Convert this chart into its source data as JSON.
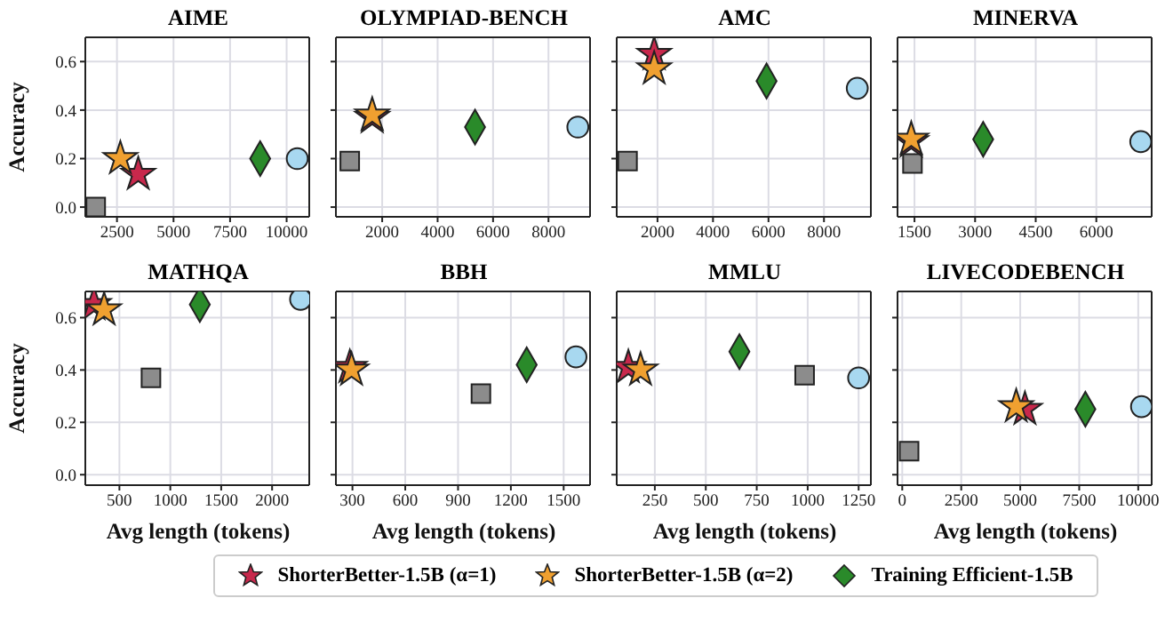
{
  "chart_data": [
    {
      "type": "scatter",
      "title": "AIME",
      "ylabel": "Accuracy",
      "xlim": [
        1100,
        11000
      ],
      "xticks": [
        2500,
        5000,
        7500,
        10000
      ],
      "ylim": [
        -0.04,
        0.7
      ],
      "yticks": [
        {
          "value": 0,
          "label": "0.0"
        },
        0.2,
        0.4,
        0.6
      ],
      "grid": true,
      "legend": "bottom",
      "series": [
        {
          "color": "#a8d8f0",
          "marker": "circle",
          "x": [
            10470
          ],
          "values": [
            0.2
          ]
        },
        {
          "color": "#8c8c8c",
          "marker": "square",
          "x": [
            1560
          ],
          "values": [
            0.0
          ]
        },
        {
          "name": "ShorterBetter-1.5B (α=1)",
          "color": "#c8284c",
          "marker": "star",
          "x": [
            3440
          ],
          "values": [
            0.135
          ]
        },
        {
          "name": "ShorterBetter-1.5B (α=2)",
          "color": "#f0a030",
          "marker": "star",
          "x": [
            2650
          ],
          "values": [
            0.2
          ]
        },
        {
          "name": "Training Efficient-1.5B",
          "color": "#2a8a2a",
          "marker": "diamond",
          "x": [
            8830
          ],
          "values": [
            0.2
          ]
        }
      ]
    },
    {
      "type": "scatter",
      "title": "OLYMPIAD-BENCH",
      "xlim": [
        330,
        9500
      ],
      "xticks": [
        2000,
        4000,
        6000,
        8000
      ],
      "ylim": [
        -0.04,
        0.7
      ],
      "yticks": [
        0.0,
        0.2,
        0.4,
        0.6
      ],
      "grid": true,
      "tick_labels": "x",
      "series": [
        {
          "color": "#a8d8f0",
          "marker": "circle",
          "x": [
            9060
          ],
          "values": [
            0.33
          ]
        },
        {
          "color": "#8c8c8c",
          "marker": "square",
          "x": [
            830
          ],
          "values": [
            0.19
          ]
        },
        {
          "name": "ShorterBetter-1.5B (α=1)",
          "color": "#c8284c",
          "marker": "star",
          "x": [
            1640
          ],
          "values": [
            0.37
          ]
        },
        {
          "name": "ShorterBetter-1.5B (α=2)",
          "color": "#f0a030",
          "marker": "star",
          "x": [
            1640
          ],
          "values": [
            0.38
          ]
        },
        {
          "name": "Training Efficient-1.5B",
          "color": "#2a8a2a",
          "marker": "diamond",
          "x": [
            5350
          ],
          "values": [
            0.33
          ]
        }
      ]
    },
    {
      "type": "scatter",
      "title": "AMC",
      "xlim": [
        530,
        9690
      ],
      "xticks": [
        2000,
        4000,
        6000,
        8000
      ],
      "ylim": [
        -0.04,
        0.7
      ],
      "yticks": [
        0.0,
        0.2,
        0.4,
        0.6
      ],
      "grid": true,
      "tick_labels": "x",
      "series": [
        {
          "color": "#a8d8f0",
          "marker": "circle",
          "x": [
            9200
          ],
          "values": [
            0.49
          ]
        },
        {
          "color": "#8c8c8c",
          "marker": "square",
          "x": [
            920
          ],
          "values": [
            0.19
          ]
        },
        {
          "name": "ShorterBetter-1.5B (α=1)",
          "color": "#c8284c",
          "marker": "star",
          "x": [
            1880
          ],
          "values": [
            0.63
          ]
        },
        {
          "name": "ShorterBetter-1.5B (α=2)",
          "color": "#f0a030",
          "marker": "star",
          "x": [
            1880
          ],
          "values": [
            0.57
          ]
        },
        {
          "name": "Training Efficient-1.5B",
          "color": "#2a8a2a",
          "marker": "diamond",
          "x": [
            5930
          ],
          "values": [
            0.52
          ]
        }
      ]
    },
    {
      "type": "scatter",
      "title": "MINERVA",
      "xlim": [
        1080,
        7370
      ],
      "xticks": [
        1500,
        3000,
        4500,
        6000
      ],
      "ylim": [
        -0.04,
        0.7
      ],
      "yticks": [
        0.0,
        0.2,
        0.4,
        0.6
      ],
      "grid": true,
      "tick_labels": "x",
      "series": [
        {
          "color": "#a8d8f0",
          "marker": "circle",
          "x": [
            7100
          ],
          "values": [
            0.27
          ]
        },
        {
          "color": "#8c8c8c",
          "marker": "square",
          "x": [
            1450
          ],
          "values": [
            0.18
          ]
        },
        {
          "name": "ShorterBetter-1.5B (α=1)",
          "color": "#c8284c",
          "marker": "star",
          "x": [
            1420
          ],
          "values": [
            0.27
          ]
        },
        {
          "name": "ShorterBetter-1.5B (α=2)",
          "color": "#f0a030",
          "marker": "star",
          "x": [
            1420
          ],
          "values": [
            0.28
          ]
        },
        {
          "name": "Training Efficient-1.5B",
          "color": "#2a8a2a",
          "marker": "diamond",
          "x": [
            3200
          ],
          "values": [
            0.28
          ]
        }
      ]
    },
    {
      "type": "scatter",
      "title": "MATHQA",
      "xlabel": "Avg length (tokens)",
      "ylabel": "Accuracy",
      "xlim": [
        165,
        2365
      ],
      "xticks": [
        500,
        1000,
        1500,
        2000
      ],
      "ylim": [
        -0.04,
        0.7
      ],
      "yticks": [
        {
          "value": 0,
          "label": "0.0"
        },
        0.2,
        0.4,
        0.6
      ],
      "grid": true,
      "series": [
        {
          "color": "#a8d8f0",
          "marker": "circle",
          "x": [
            2280
          ],
          "values": [
            0.67
          ]
        },
        {
          "color": "#8c8c8c",
          "marker": "square",
          "x": [
            810
          ],
          "values": [
            0.37
          ]
        },
        {
          "name": "ShorterBetter-1.5B (α=1)",
          "color": "#c8284c",
          "marker": "star",
          "x": [
            250
          ],
          "values": [
            0.65
          ]
        },
        {
          "name": "ShorterBetter-1.5B (α=2)",
          "color": "#f0a030",
          "marker": "star",
          "x": [
            350
          ],
          "values": [
            0.63
          ]
        },
        {
          "name": "Training Efficient-1.5B",
          "color": "#2a8a2a",
          "marker": "diamond",
          "x": [
            1290
          ],
          "values": [
            0.65
          ]
        }
      ]
    },
    {
      "type": "scatter",
      "title": "BBH",
      "xlabel": "Avg length (tokens)",
      "xlim": [
        206,
        1650
      ],
      "xticks": [
        300,
        600,
        900,
        1200,
        1500
      ],
      "ylim": [
        -0.04,
        0.7
      ],
      "yticks": [
        0.0,
        0.2,
        0.4,
        0.6
      ],
      "grid": true,
      "tick_labels": "x",
      "series": [
        {
          "color": "#a8d8f0",
          "marker": "circle",
          "x": [
            1570
          ],
          "values": [
            0.45
          ]
        },
        {
          "color": "#8c8c8c",
          "marker": "square",
          "x": [
            1030
          ],
          "values": [
            0.31
          ]
        },
        {
          "name": "ShorterBetter-1.5B (α=1)",
          "color": "#c8284c",
          "marker": "star",
          "x": [
            285
          ],
          "values": [
            0.41
          ]
        },
        {
          "name": "ShorterBetter-1.5B (α=2)",
          "color": "#f0a030",
          "marker": "star",
          "x": [
            295
          ],
          "values": [
            0.4
          ]
        },
        {
          "name": "Training Efficient-1.5B",
          "color": "#2a8a2a",
          "marker": "diamond",
          "x": [
            1290
          ],
          "values": [
            0.42
          ]
        }
      ]
    },
    {
      "type": "scatter",
      "title": "MMLU",
      "xlabel": "Avg length (tokens)",
      "xlim": [
        63,
        1310
      ],
      "xticks": [
        250,
        500,
        750,
        1000,
        1250
      ],
      "ylim": [
        -0.04,
        0.7
      ],
      "yticks": [
        0.0,
        0.2,
        0.4,
        0.6
      ],
      "grid": true,
      "tick_labels": "x",
      "series": [
        {
          "color": "#a8d8f0",
          "marker": "circle",
          "x": [
            1250
          ],
          "values": [
            0.37
          ]
        },
        {
          "color": "#8c8c8c",
          "marker": "square",
          "x": [
            985
          ],
          "values": [
            0.38
          ]
        },
        {
          "name": "ShorterBetter-1.5B (α=1)",
          "color": "#c8284c",
          "marker": "star",
          "x": [
            120
          ],
          "values": [
            0.41
          ]
        },
        {
          "name": "ShorterBetter-1.5B (α=2)",
          "color": "#f0a030",
          "marker": "star",
          "x": [
            180
          ],
          "values": [
            0.4
          ]
        },
        {
          "name": "Training Efficient-1.5B",
          "color": "#2a8a2a",
          "marker": "diamond",
          "x": [
            665
          ],
          "values": [
            0.47
          ]
        }
      ]
    },
    {
      "type": "scatter",
      "title": "LIVECODEBENCH",
      "xlabel": "Avg length (tokens)",
      "xlim": [
        -200,
        10570
      ],
      "xticks": [
        0,
        2500,
        5000,
        7500,
        10000
      ],
      "ylim": [
        -0.04,
        0.7
      ],
      "yticks": [
        0.0,
        0.2,
        0.4,
        0.6
      ],
      "grid": true,
      "tick_labels": "x",
      "series": [
        {
          "color": "#a8d8f0",
          "marker": "circle",
          "x": [
            10140
          ],
          "values": [
            0.26
          ]
        },
        {
          "color": "#8c8c8c",
          "marker": "square",
          "x": [
            290
          ],
          "values": [
            0.09
          ]
        },
        {
          "name": "ShorterBetter-1.5B (α=1)",
          "color": "#c8284c",
          "marker": "star",
          "x": [
            5200
          ],
          "values": [
            0.25
          ]
        },
        {
          "name": "ShorterBetter-1.5B (α=2)",
          "color": "#f0a030",
          "marker": "star",
          "x": [
            4830
          ],
          "values": [
            0.26
          ]
        },
        {
          "name": "Training Efficient-1.5B",
          "color": "#2a8a2a",
          "marker": "diamond",
          "x": [
            7760
          ],
          "values": [
            0.25
          ]
        }
      ]
    }
  ]
}
